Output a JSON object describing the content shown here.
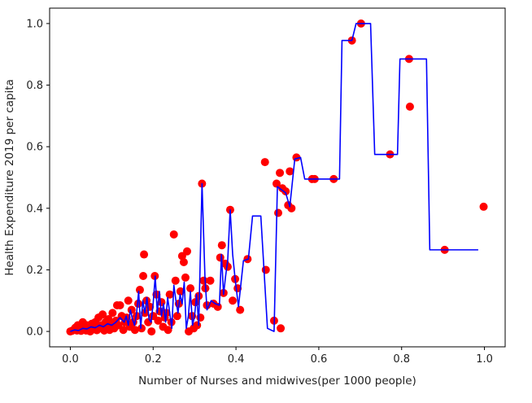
{
  "chart_data": {
    "type": "scatter",
    "title": "",
    "xlabel": "Number of Nurses and midwives(per 1000 people)",
    "ylabel": "Health Expenditure 2019 per capita",
    "xlim": [
      -0.05,
      1.05
    ],
    "ylim": [
      -0.05,
      1.05
    ],
    "xticks": [
      0.0,
      0.2,
      0.4,
      0.6,
      0.8,
      1.0
    ],
    "yticks": [
      0.0,
      0.2,
      0.4,
      0.6,
      0.8,
      1.0
    ],
    "xtick_labels": [
      "0.0",
      "0.2",
      "0.4",
      "0.6",
      "0.8",
      "1.0"
    ],
    "ytick_labels": [
      "0.0",
      "0.2",
      "0.4",
      "0.6",
      "0.8",
      "1.0"
    ],
    "grid": false,
    "colors": {
      "points": "#ff0000",
      "line": "#0000ff",
      "axes": "#000000"
    },
    "series": [
      {
        "kind": "scatter",
        "color": "#ff0000",
        "points": [
          [
            0.0,
            0.0
          ],
          [
            0.004,
            0.002
          ],
          [
            0.008,
            0.005
          ],
          [
            0.012,
            0.012
          ],
          [
            0.016,
            0.003
          ],
          [
            0.018,
            0.02
          ],
          [
            0.022,
            0.008
          ],
          [
            0.026,
            0.002
          ],
          [
            0.03,
            0.03
          ],
          [
            0.034,
            0.01
          ],
          [
            0.038,
            0.003
          ],
          [
            0.04,
            0.02
          ],
          [
            0.044,
            0.015
          ],
          [
            0.048,
            0.0
          ],
          [
            0.052,
            0.025
          ],
          [
            0.056,
            0.008
          ],
          [
            0.06,
            0.03
          ],
          [
            0.064,
            0.004
          ],
          [
            0.068,
            0.045
          ],
          [
            0.072,
            0.01
          ],
          [
            0.075,
            0.02
          ],
          [
            0.078,
            0.055
          ],
          [
            0.082,
            0.003
          ],
          [
            0.085,
            0.03
          ],
          [
            0.088,
            0.015
          ],
          [
            0.092,
            0.04
          ],
          [
            0.095,
            0.005
          ],
          [
            0.098,
            0.025
          ],
          [
            0.102,
            0.06
          ],
          [
            0.106,
            0.01
          ],
          [
            0.11,
            0.035
          ],
          [
            0.113,
            0.085
          ],
          [
            0.116,
            0.02
          ],
          [
            0.12,
            0.085
          ],
          [
            0.124,
            0.05
          ],
          [
            0.128,
            0.005
          ],
          [
            0.132,
            0.03
          ],
          [
            0.136,
            0.045
          ],
          [
            0.14,
            0.1
          ],
          [
            0.144,
            0.015
          ],
          [
            0.148,
            0.07
          ],
          [
            0.152,
            0.03
          ],
          [
            0.156,
            0.005
          ],
          [
            0.16,
            0.05
          ],
          [
            0.164,
            0.09
          ],
          [
            0.168,
            0.135
          ],
          [
            0.172,
            0.01
          ],
          [
            0.176,
            0.18
          ],
          [
            0.178,
            0.25
          ],
          [
            0.18,
            0.06
          ],
          [
            0.184,
            0.1
          ],
          [
            0.188,
            0.03
          ],
          [
            0.192,
            0.08
          ],
          [
            0.196,
            0.0
          ],
          [
            0.2,
            0.05
          ],
          [
            0.204,
            0.18
          ],
          [
            0.208,
            0.12
          ],
          [
            0.212,
            0.035
          ],
          [
            0.216,
            0.065
          ],
          [
            0.22,
            0.095
          ],
          [
            0.224,
            0.015
          ],
          [
            0.228,
            0.045
          ],
          [
            0.232,
            0.06
          ],
          [
            0.236,
            0.005
          ],
          [
            0.24,
            0.12
          ],
          [
            0.244,
            0.03
          ],
          [
            0.25,
            0.315
          ],
          [
            0.254,
            0.165
          ],
          [
            0.258,
            0.05
          ],
          [
            0.262,
            0.09
          ],
          [
            0.266,
            0.13
          ],
          [
            0.27,
            0.245
          ],
          [
            0.274,
            0.225
          ],
          [
            0.278,
            0.175
          ],
          [
            0.282,
            0.26
          ],
          [
            0.286,
            0.0
          ],
          [
            0.29,
            0.14
          ],
          [
            0.294,
            0.05
          ],
          [
            0.298,
            0.01
          ],
          [
            0.302,
            0.095
          ],
          [
            0.306,
            0.02
          ],
          [
            0.31,
            0.115
          ],
          [
            0.314,
            0.045
          ],
          [
            0.318,
            0.48
          ],
          [
            0.322,
            0.165
          ],
          [
            0.326,
            0.14
          ],
          [
            0.33,
            0.085
          ],
          [
            0.338,
            0.165
          ],
          [
            0.346,
            0.09
          ],
          [
            0.356,
            0.08
          ],
          [
            0.362,
            0.24
          ],
          [
            0.366,
            0.28
          ],
          [
            0.37,
            0.125
          ],
          [
            0.374,
            0.22
          ],
          [
            0.38,
            0.21
          ],
          [
            0.386,
            0.395
          ],
          [
            0.392,
            0.1
          ],
          [
            0.398,
            0.17
          ],
          [
            0.404,
            0.14
          ],
          [
            0.41,
            0.07
          ],
          [
            0.428,
            0.235
          ],
          [
            0.47,
            0.55
          ],
          [
            0.472,
            0.2
          ],
          [
            0.492,
            0.035
          ],
          [
            0.498,
            0.48
          ],
          [
            0.502,
            0.385
          ],
          [
            0.506,
            0.515
          ],
          [
            0.508,
            0.01
          ],
          [
            0.512,
            0.465
          ],
          [
            0.52,
            0.455
          ],
          [
            0.526,
            0.41
          ],
          [
            0.53,
            0.52
          ],
          [
            0.534,
            0.4
          ],
          [
            0.546,
            0.565
          ],
          [
            0.584,
            0.495
          ],
          [
            0.59,
            0.495
          ],
          [
            0.636,
            0.495
          ],
          [
            0.68,
            0.945
          ],
          [
            0.702,
            1.0
          ],
          [
            0.772,
            0.575
          ],
          [
            0.818,
            0.885
          ],
          [
            0.82,
            0.73
          ],
          [
            0.904,
            0.265
          ],
          [
            0.998,
            0.405
          ]
        ]
      },
      {
        "kind": "line",
        "color": "#0000ff",
        "points": [
          [
            0.0,
            0.0
          ],
          [
            0.01,
            0.005
          ],
          [
            0.02,
            0.003
          ],
          [
            0.03,
            0.01
          ],
          [
            0.04,
            0.008
          ],
          [
            0.05,
            0.015
          ],
          [
            0.06,
            0.012
          ],
          [
            0.07,
            0.02
          ],
          [
            0.08,
            0.015
          ],
          [
            0.09,
            0.025
          ],
          [
            0.1,
            0.02
          ],
          [
            0.11,
            0.03
          ],
          [
            0.12,
            0.045
          ],
          [
            0.13,
            0.03
          ],
          [
            0.135,
            0.05
          ],
          [
            0.14,
            0.02
          ],
          [
            0.145,
            0.07
          ],
          [
            0.15,
            0.04
          ],
          [
            0.155,
            0.02
          ],
          [
            0.16,
            0.06
          ],
          [
            0.165,
            0.13
          ],
          [
            0.17,
            0.01
          ],
          [
            0.175,
            0.1
          ],
          [
            0.18,
            0.06
          ],
          [
            0.185,
            0.11
          ],
          [
            0.19,
            0.04
          ],
          [
            0.195,
            0.03
          ],
          [
            0.2,
            0.09
          ],
          [
            0.205,
            0.18
          ],
          [
            0.21,
            0.06
          ],
          [
            0.215,
            0.13
          ],
          [
            0.22,
            0.05
          ],
          [
            0.225,
            0.09
          ],
          [
            0.23,
            0.03
          ],
          [
            0.235,
            0.11
          ],
          [
            0.24,
            0.06
          ],
          [
            0.245,
            0.01
          ],
          [
            0.25,
            0.15
          ],
          [
            0.255,
            0.1
          ],
          [
            0.26,
            0.06
          ],
          [
            0.265,
            0.12
          ],
          [
            0.27,
            0.09
          ],
          [
            0.275,
            0.16
          ],
          [
            0.28,
            0.01
          ],
          [
            0.285,
            0.05
          ],
          [
            0.29,
            0.13
          ],
          [
            0.295,
            0.02
          ],
          [
            0.3,
            0.05
          ],
          [
            0.305,
            0.12
          ],
          [
            0.31,
            0.02
          ],
          [
            0.318,
            0.48
          ],
          [
            0.325,
            0.18
          ],
          [
            0.33,
            0.07
          ],
          [
            0.34,
            0.1
          ],
          [
            0.35,
            0.09
          ],
          [
            0.36,
            0.085
          ],
          [
            0.365,
            0.25
          ],
          [
            0.37,
            0.12
          ],
          [
            0.375,
            0.18
          ],
          [
            0.38,
            0.23
          ],
          [
            0.386,
            0.395
          ],
          [
            0.392,
            0.25
          ],
          [
            0.398,
            0.17
          ],
          [
            0.406,
            0.08
          ],
          [
            0.418,
            0.23
          ],
          [
            0.43,
            0.235
          ],
          [
            0.44,
            0.375
          ],
          [
            0.46,
            0.375
          ],
          [
            0.476,
            0.01
          ],
          [
            0.492,
            0.0
          ],
          [
            0.5,
            0.47
          ],
          [
            0.51,
            0.46
          ],
          [
            0.52,
            0.45
          ],
          [
            0.53,
            0.405
          ],
          [
            0.542,
            0.56
          ],
          [
            0.556,
            0.565
          ],
          [
            0.566,
            0.495
          ],
          [
            0.58,
            0.495
          ],
          [
            0.63,
            0.495
          ],
          [
            0.65,
            0.495
          ],
          [
            0.656,
            0.945
          ],
          [
            0.68,
            0.945
          ],
          [
            0.69,
            1.0
          ],
          [
            0.725,
            1.0
          ],
          [
            0.735,
            0.575
          ],
          [
            0.79,
            0.575
          ],
          [
            0.796,
            0.885
          ],
          [
            0.86,
            0.885
          ],
          [
            0.868,
            0.265
          ],
          [
            0.985,
            0.265
          ]
        ]
      }
    ]
  }
}
